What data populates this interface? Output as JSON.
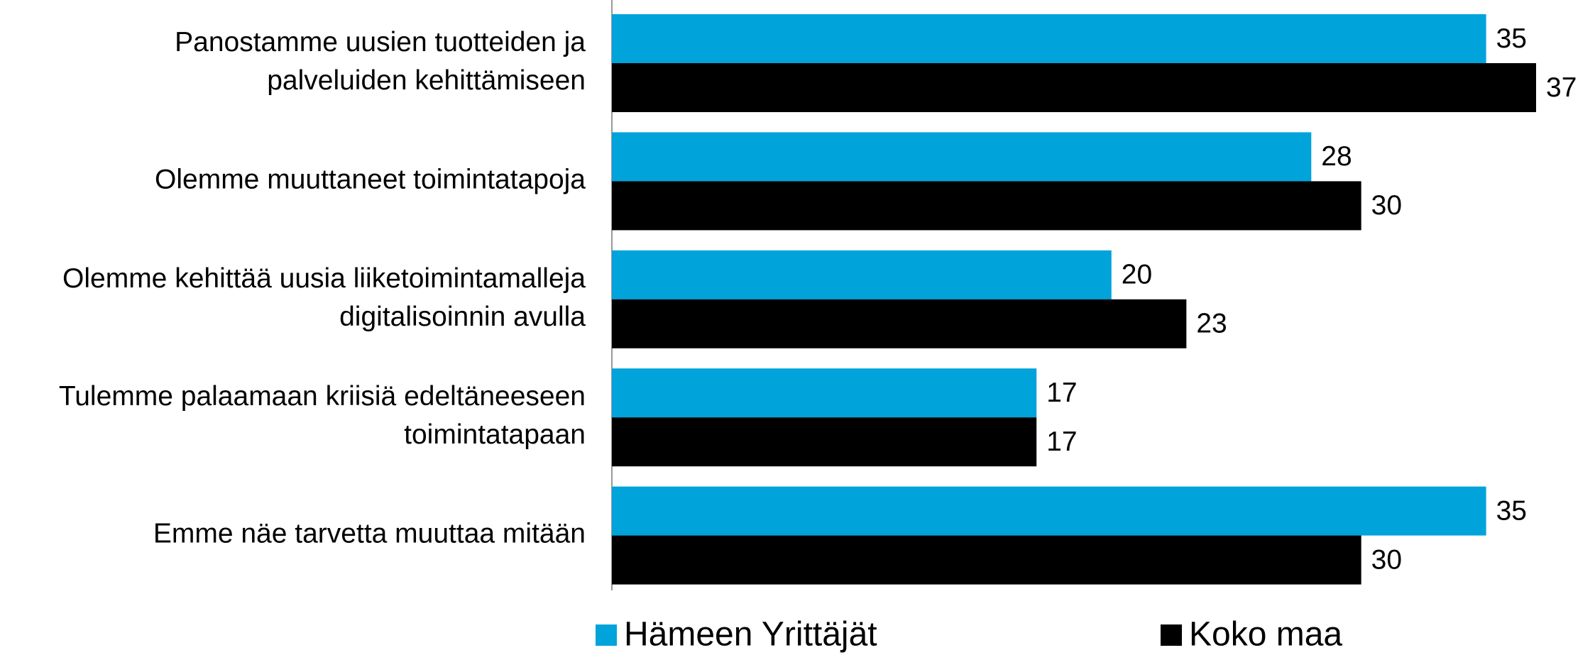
{
  "chart_data": {
    "type": "hbar",
    "categories": [
      "Panostamme uusien tuotteiden ja\npalveluiden kehittämiseen",
      "Olemme muuttaneet toimintatapoja",
      "Olemme kehittää uusia liiketoimintamalleja\ndigitalisoinnin avulla",
      "Tulemme palaamaan kriisiä edeltäneeseen\ntoimintatapaan",
      "Emme näe tarvetta muuttaa mitään"
    ],
    "series": [
      {
        "name": "Hämeen Yrittäjät",
        "color": "#00a3da",
        "values": [
          35,
          28,
          20,
          17,
          35
        ]
      },
      {
        "name": "Koko maa",
        "color": "#000000",
        "values": [
          37,
          30,
          23,
          17,
          30
        ]
      }
    ]
  }
}
